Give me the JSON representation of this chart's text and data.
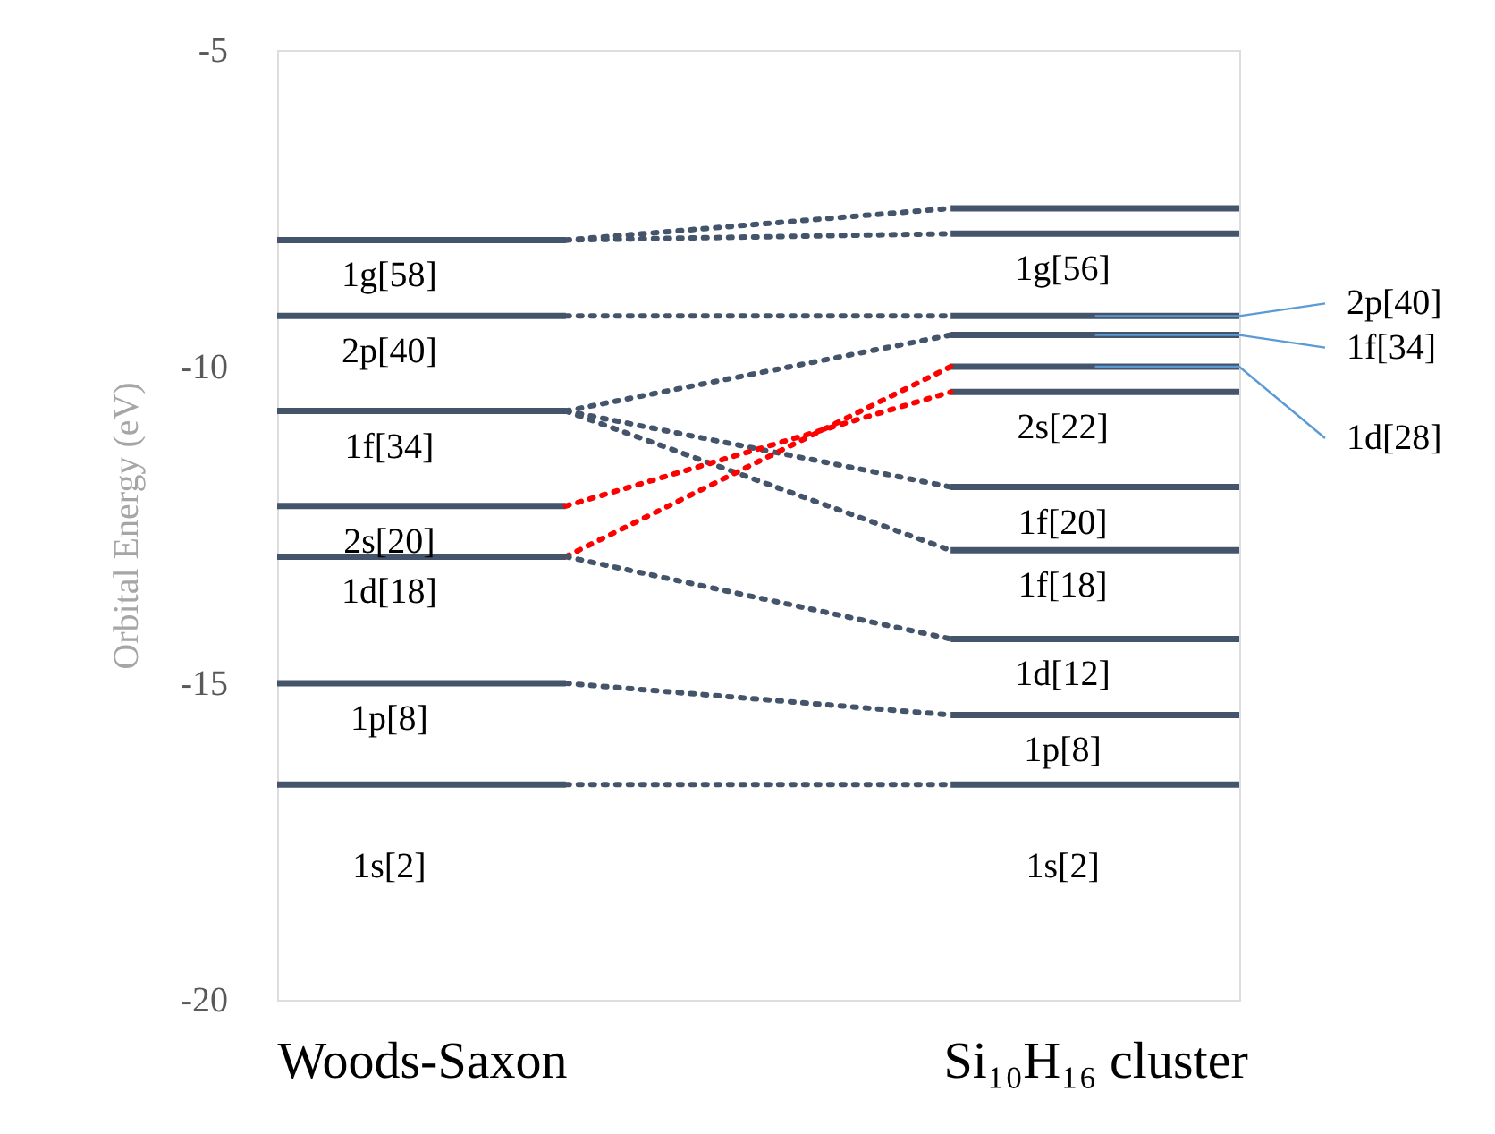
{
  "chart_data": {
    "type": "line",
    "ylabel": "Orbital Energy (eV)",
    "categories": [
      null,
      null,
      null,
      "Woods-Saxon",
      null,
      null,
      null,
      null,
      null,
      null,
      null,
      null,
      null,
      null,
      null,
      null,
      null,
      "Si₁₀H₁₆ cluster",
      null,
      null,
      null
    ],
    "ylim": [
      -20,
      -5
    ],
    "yticks": [
      -5,
      -10,
      -15,
      -20
    ],
    "grid": false,
    "marker": "none",
    "series": [
      {
        "type": "line",
        "color": "#44546a",
        "line_style": "solid",
        "values": [
          -8.0,
          -8.0,
          -8.0,
          -8.0,
          -8.0,
          -8.0,
          -8.0,
          null,
          null,
          null,
          null,
          null,
          null,
          null,
          null,
          null,
          null,
          null,
          null,
          null,
          null
        ]
      },
      {
        "type": "line",
        "color": "#44546a",
        "line_style": "solid",
        "values": [
          -9.2,
          -9.2,
          -9.2,
          -9.2,
          -9.2,
          -9.2,
          -9.2,
          null,
          null,
          null,
          null,
          null,
          null,
          null,
          null,
          null,
          null,
          null,
          null,
          null,
          null
        ]
      },
      {
        "type": "line",
        "color": "#44546a",
        "line_style": "solid",
        "values": [
          -10.7,
          -10.7,
          -10.7,
          -10.7,
          -10.7,
          -10.7,
          -10.7,
          null,
          null,
          null,
          null,
          null,
          null,
          null,
          null,
          null,
          null,
          null,
          null,
          null,
          null
        ]
      },
      {
        "type": "line",
        "color": "#44546a",
        "line_style": "solid",
        "values": [
          -12.2,
          -12.2,
          -12.2,
          -12.2,
          -12.2,
          -12.2,
          -12.2,
          null,
          null,
          null,
          null,
          null,
          null,
          null,
          null,
          null,
          null,
          null,
          null,
          null,
          null
        ]
      },
      {
        "type": "line",
        "color": "#44546a",
        "line_style": "solid",
        "values": [
          -13.0,
          -13.0,
          -13.0,
          -13.0,
          -13.0,
          -13.0,
          -13.0,
          null,
          null,
          null,
          null,
          null,
          null,
          null,
          null,
          null,
          null,
          null,
          null,
          null,
          null
        ]
      },
      {
        "type": "line",
        "color": "#44546a",
        "line_style": "solid",
        "values": [
          -15.0,
          -15.0,
          -15.0,
          -15.0,
          -15.0,
          -15.0,
          -15.0,
          null,
          null,
          null,
          null,
          null,
          null,
          null,
          null,
          null,
          null,
          null,
          null,
          null,
          null
        ]
      },
      {
        "type": "line",
        "color": "#44546a",
        "line_style": "solid",
        "values": [
          -16.6,
          -16.6,
          -16.6,
          -16.6,
          -16.6,
          -16.6,
          -16.6,
          null,
          null,
          null,
          null,
          null,
          null,
          null,
          null,
          null,
          null,
          null,
          null,
          null,
          null
        ]
      },
      {
        "type": "line",
        "color": "#44546a",
        "line_style": "solid",
        "values": [
          null,
          null,
          null,
          null,
          null,
          null,
          null,
          null,
          null,
          null,
          null,
          null,
          null,
          null,
          -7.5,
          -7.5,
          -7.5,
          -7.5,
          -7.5,
          -7.5,
          -7.5
        ]
      },
      {
        "type": "line",
        "color": "#44546a",
        "line_style": "solid",
        "values": [
          null,
          null,
          null,
          null,
          null,
          null,
          null,
          null,
          null,
          null,
          null,
          null,
          null,
          null,
          -7.9,
          -7.9,
          -7.9,
          -7.9,
          -7.9,
          -7.9,
          -7.9
        ]
      },
      {
        "type": "line",
        "color": "#44546a",
        "line_style": "solid",
        "values": [
          null,
          null,
          null,
          null,
          null,
          null,
          null,
          null,
          null,
          null,
          null,
          null,
          null,
          null,
          -9.2,
          -9.2,
          -9.2,
          -9.2,
          -9.2,
          -9.2,
          -9.2
        ]
      },
      {
        "type": "line",
        "color": "#44546a",
        "line_style": "solid",
        "values": [
          null,
          null,
          null,
          null,
          null,
          null,
          null,
          null,
          null,
          null,
          null,
          null,
          null,
          null,
          -9.5,
          -9.5,
          -9.5,
          -9.5,
          -9.5,
          -9.5,
          -9.5
        ]
      },
      {
        "type": "line",
        "color": "#44546a",
        "line_style": "solid",
        "values": [
          null,
          null,
          null,
          null,
          null,
          null,
          null,
          null,
          null,
          null,
          null,
          null,
          null,
          null,
          -10.0,
          -10.0,
          -10.0,
          -10.0,
          -10.0,
          -10.0,
          -10.0
        ]
      },
      {
        "type": "line",
        "color": "#44546a",
        "line_style": "solid",
        "values": [
          null,
          null,
          null,
          null,
          null,
          null,
          null,
          null,
          null,
          null,
          null,
          null,
          null,
          null,
          -10.4,
          -10.4,
          -10.4,
          -10.4,
          -10.4,
          -10.4,
          -10.4
        ]
      },
      {
        "type": "line",
        "color": "#44546a",
        "line_style": "solid",
        "values": [
          null,
          null,
          null,
          null,
          null,
          null,
          null,
          null,
          null,
          null,
          null,
          null,
          null,
          null,
          -11.9,
          -11.9,
          -11.9,
          -11.9,
          -11.9,
          -11.9,
          -11.9
        ]
      },
      {
        "type": "line",
        "color": "#44546a",
        "line_style": "solid",
        "values": [
          null,
          null,
          null,
          null,
          null,
          null,
          null,
          null,
          null,
          null,
          null,
          null,
          null,
          null,
          -12.9,
          -12.9,
          -12.9,
          -12.9,
          -12.9,
          -12.9,
          -12.9
        ]
      },
      {
        "type": "line",
        "color": "#44546a",
        "line_style": "solid",
        "values": [
          null,
          null,
          null,
          null,
          null,
          null,
          null,
          null,
          null,
          null,
          null,
          null,
          null,
          null,
          -14.3,
          -14.3,
          -14.3,
          -14.3,
          -14.3,
          -14.3,
          -14.3
        ]
      },
      {
        "type": "line",
        "color": "#44546a",
        "line_style": "solid",
        "values": [
          null,
          null,
          null,
          null,
          null,
          null,
          null,
          null,
          null,
          null,
          null,
          null,
          null,
          null,
          -15.5,
          -15.5,
          -15.5,
          -15.5,
          -15.5,
          -15.5,
          -15.5
        ]
      },
      {
        "type": "line",
        "color": "#44546a",
        "line_style": "solid",
        "values": [
          null,
          null,
          null,
          null,
          null,
          null,
          null,
          null,
          null,
          null,
          null,
          null,
          null,
          null,
          -16.6,
          -16.6,
          -16.6,
          -16.6,
          -16.6,
          -16.6,
          -16.6
        ]
      },
      {
        "type": "line",
        "color": "#44546a",
        "line_style": "dotted",
        "values": [
          null,
          null,
          null,
          null,
          null,
          null,
          -8.0,
          null,
          null,
          null,
          null,
          null,
          null,
          null,
          -7.5,
          null,
          null,
          null,
          null,
          null,
          null
        ]
      },
      {
        "type": "line",
        "color": "#44546a",
        "line_style": "dotted",
        "values": [
          null,
          null,
          null,
          null,
          null,
          null,
          -8.0,
          null,
          null,
          null,
          null,
          null,
          null,
          null,
          -7.9,
          null,
          null,
          null,
          null,
          null,
          null
        ]
      },
      {
        "type": "line",
        "color": "#44546a",
        "line_style": "dotted",
        "values": [
          null,
          null,
          null,
          null,
          null,
          null,
          -9.2,
          null,
          null,
          null,
          null,
          null,
          null,
          null,
          -9.2,
          null,
          null,
          null,
          null,
          null,
          null
        ]
      },
      {
        "type": "line",
        "color": "#44546a",
        "line_style": "dotted",
        "values": [
          null,
          null,
          null,
          null,
          null,
          null,
          -10.7,
          null,
          null,
          null,
          null,
          null,
          null,
          null,
          -9.5,
          null,
          null,
          null,
          null,
          null,
          null
        ]
      },
      {
        "type": "line",
        "color": "#44546a",
        "line_style": "dotted",
        "values": [
          null,
          null,
          null,
          null,
          null,
          null,
          -10.7,
          null,
          null,
          null,
          null,
          null,
          null,
          null,
          -11.9,
          null,
          null,
          null,
          null,
          null,
          null
        ]
      },
      {
        "type": "line",
        "color": "#44546a",
        "line_style": "dotted",
        "values": [
          null,
          null,
          null,
          null,
          null,
          null,
          -10.7,
          null,
          null,
          null,
          null,
          null,
          null,
          null,
          -12.9,
          null,
          null,
          null,
          null,
          null,
          null
        ]
      },
      {
        "type": "line",
        "color": "#ff0000",
        "line_style": "dotted",
        "values": [
          null,
          null,
          null,
          null,
          null,
          null,
          -12.2,
          null,
          null,
          null,
          null,
          null,
          null,
          null,
          -10.4,
          null,
          null,
          null,
          null,
          null,
          null
        ]
      },
      {
        "type": "line",
        "color": "#ff0000",
        "line_style": "dotted",
        "values": [
          null,
          null,
          null,
          null,
          null,
          null,
          -13.0,
          null,
          null,
          null,
          null,
          null,
          null,
          null,
          -10.0,
          null,
          null,
          null,
          null,
          null,
          null
        ]
      },
      {
        "type": "line",
        "color": "#44546a",
        "line_style": "dotted",
        "values": [
          null,
          null,
          null,
          null,
          null,
          null,
          -13.0,
          null,
          null,
          null,
          null,
          null,
          null,
          null,
          -14.3,
          null,
          null,
          null,
          null,
          null,
          null
        ]
      },
      {
        "type": "line",
        "color": "#44546a",
        "line_style": "dotted",
        "values": [
          null,
          null,
          null,
          null,
          null,
          null,
          -15.0,
          null,
          null,
          null,
          null,
          null,
          null,
          null,
          -15.5,
          null,
          null,
          null,
          null,
          null,
          null
        ]
      },
      {
        "type": "line",
        "color": "#44546a",
        "line_style": "dotted",
        "values": [
          null,
          null,
          null,
          null,
          null,
          null,
          -16.6,
          null,
          null,
          null,
          null,
          null,
          null,
          null,
          -16.6,
          null,
          null,
          null,
          null,
          null,
          null
        ]
      }
    ],
    "annotations": [
      {
        "text": "1g[58]",
        "x": "Woods-Saxon",
        "y": -8.0
      },
      {
        "text": "2p[40]",
        "x": "Woods-Saxon",
        "y": -9.2
      },
      {
        "text": "1f[34]",
        "x": "Woods-Saxon",
        "y": -10.7
      },
      {
        "text": "2s[20]",
        "x": "Woods-Saxon",
        "y": -12.2
      },
      {
        "text": "1d[18]",
        "x": "Woods-Saxon",
        "y": -13.0
      },
      {
        "text": "1p[8]",
        "x": "Woods-Saxon",
        "y": -15.0
      },
      {
        "text": "1s[2]",
        "x": "Woods-Saxon",
        "y": -16.6
      },
      {
        "text": "1g[56]",
        "x": "Si₁₀H₁₆ cluster",
        "y": -7.9
      },
      {
        "text": "2p[40]",
        "x": "Si₁₀H₁₆ cluster",
        "y": -9.2
      },
      {
        "text": "1f[34]",
        "x": "Si₁₀H₁₆ cluster",
        "y": -9.5
      },
      {
        "text": "1d[28]",
        "x": "Si₁₀H₁₆ cluster",
        "y": -10.0
      },
      {
        "text": "2s[22]",
        "x": "Si₁₀H₁₆ cluster",
        "y": -10.4
      },
      {
        "text": "1f[20]",
        "x": "Si₁₀H₁₆ cluster",
        "y": -11.9
      },
      {
        "text": "1f[18]",
        "x": "Si₁₀H₁₆ cluster",
        "y": -12.9
      },
      {
        "text": "1d[12]",
        "x": "Si₁₀H₁₆ cluster",
        "y": -14.3
      },
      {
        "text": "1p[8]",
        "x": "Si₁₀H₁₆ cluster",
        "y": -15.5
      },
      {
        "text": "1s[2]",
        "x": "Si₁₀H₁₆ cluster",
        "y": -16.6
      }
    ]
  }
}
